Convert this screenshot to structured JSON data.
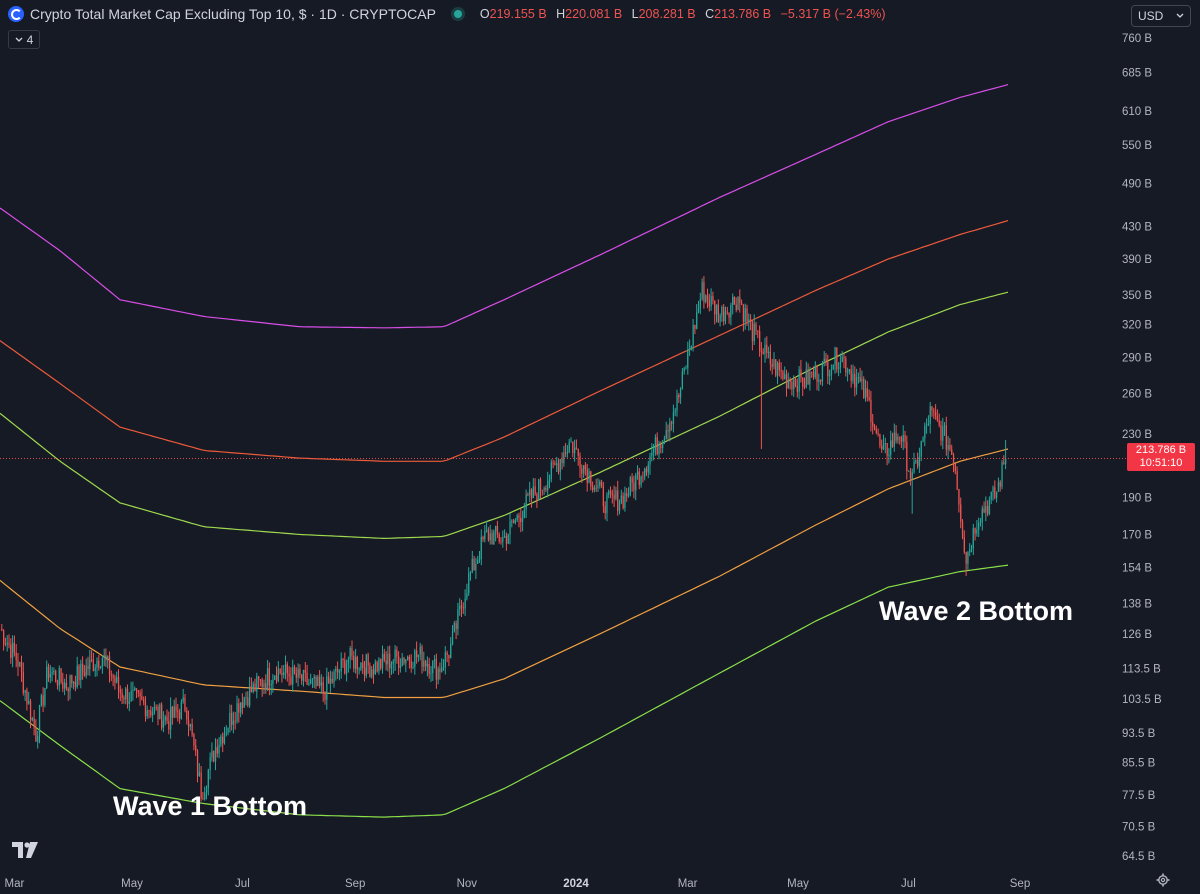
{
  "header": {
    "title": "Crypto Total Market Cap Excluding Top 10, $ · 1D · CRYPTOCAP",
    "open_label": "O",
    "open": "219.155 B",
    "high_label": "H",
    "high": "220.081 B",
    "low_label": "L",
    "low": "208.281 B",
    "close_label": "C",
    "close": "213.786 B",
    "change": "−5.317 B (−2.43%)",
    "indicator_count": "4"
  },
  "currency": "USD",
  "price_tag": {
    "price": "213.786 B",
    "countdown": "10:51:10"
  },
  "annotations": {
    "wave1": "Wave 1 Bottom",
    "wave2": "Wave 2 Bottom"
  },
  "colors": {
    "background": "#161a25",
    "up": "#26a69a",
    "down": "#ef5350",
    "band_top": "#d84ee8",
    "band_red": "#ec5a3a",
    "band_green_upper": "#9fd94e",
    "band_orange": "#f0a040",
    "band_green_lower": "#8be04a"
  },
  "chart_data": {
    "type": "candlestick",
    "title": "Crypto Total Market Cap Excluding Top 10",
    "scale": "log",
    "ylim": [
      62,
      790
    ],
    "y_ticks": [
      "760 B",
      "685 B",
      "610 B",
      "550 B",
      "490 B",
      "430 B",
      "390 B",
      "350 B",
      "320 B",
      "290 B",
      "260 B",
      "230 B",
      "190 B",
      "170 B",
      "154 B",
      "138 B",
      "126 B",
      "113.5 B",
      "103.5 B",
      "93.5 B",
      "85.5 B",
      "77.5 B",
      "70.5 B",
      "64.5 B"
    ],
    "y_tick_values": [
      760,
      685,
      610,
      550,
      490,
      430,
      390,
      350,
      320,
      290,
      260,
      230,
      190,
      170,
      154,
      138,
      126,
      113.5,
      103.5,
      93.5,
      85.5,
      77.5,
      70.5,
      64.5
    ],
    "x_ticks": [
      {
        "label": "Mar",
        "t": 0.012,
        "bold": false
      },
      {
        "label": "May",
        "t": 0.11,
        "bold": false
      },
      {
        "label": "Jul",
        "t": 0.202,
        "bold": false
      },
      {
        "label": "Sep",
        "t": 0.296,
        "bold": false
      },
      {
        "label": "Nov",
        "t": 0.389,
        "bold": false
      },
      {
        "label": "2024",
        "t": 0.48,
        "bold": true
      },
      {
        "label": "Mar",
        "t": 0.573,
        "bold": false
      },
      {
        "label": "May",
        "t": 0.665,
        "bold": false
      },
      {
        "label": "Jul",
        "t": 0.757,
        "bold": false
      },
      {
        "label": "Sep",
        "t": 0.85,
        "bold": false
      }
    ],
    "last_price": 213.786,
    "price_path": [
      [
        0,
        128
      ],
      [
        0.015,
        116
      ],
      [
        0.03,
        93
      ],
      [
        0.04,
        113
      ],
      [
        0.055,
        108
      ],
      [
        0.07,
        113
      ],
      [
        0.085,
        118
      ],
      [
        0.1,
        106
      ],
      [
        0.12,
        102
      ],
      [
        0.14,
        97
      ],
      [
        0.155,
        102
      ],
      [
        0.168,
        78
      ],
      [
        0.18,
        90
      ],
      [
        0.2,
        103
      ],
      [
        0.215,
        108
      ],
      [
        0.23,
        113
      ],
      [
        0.25,
        110
      ],
      [
        0.27,
        106
      ],
      [
        0.29,
        117
      ],
      [
        0.31,
        114
      ],
      [
        0.33,
        117
      ],
      [
        0.35,
        118
      ],
      [
        0.365,
        113
      ],
      [
        0.375,
        120
      ],
      [
        0.39,
        148
      ],
      [
        0.405,
        170
      ],
      [
        0.42,
        168
      ],
      [
        0.44,
        188
      ],
      [
        0.46,
        205
      ],
      [
        0.475,
        225
      ],
      [
        0.49,
        205
      ],
      [
        0.505,
        187
      ],
      [
        0.52,
        190
      ],
      [
        0.535,
        207
      ],
      [
        0.55,
        226
      ],
      [
        0.565,
        255
      ],
      [
        0.575,
        300
      ],
      [
        0.585,
        355
      ],
      [
        0.6,
        330
      ],
      [
        0.615,
        348
      ],
      [
        0.625,
        318
      ],
      [
        0.64,
        288
      ],
      [
        0.655,
        272
      ],
      [
        0.67,
        270
      ],
      [
        0.685,
        280
      ],
      [
        0.7,
        292
      ],
      [
        0.715,
        270
      ],
      [
        0.725,
        250
      ],
      [
        0.735,
        215
      ],
      [
        0.75,
        232
      ],
      [
        0.76,
        200
      ],
      [
        0.775,
        245
      ],
      [
        0.785,
        232
      ],
      [
        0.795,
        215
      ],
      [
        0.805,
        158
      ],
      [
        0.815,
        180
      ],
      [
        0.83,
        192
      ],
      [
        0.838,
        214
      ]
    ],
    "lows": [
      {
        "t": 0.03,
        "v": 91
      },
      {
        "t": 0.168,
        "v": 76
      },
      {
        "t": 0.635,
        "v": 220
      },
      {
        "t": 0.76,
        "v": 181
      },
      {
        "t": 0.805,
        "v": 150
      }
    ],
    "highs": [
      {
        "t": 0.585,
        "v": 368
      },
      {
        "t": 0.838,
        "v": 226
      }
    ],
    "series": [
      {
        "name": "band_top",
        "color": "#d84ee8",
        "points": [
          [
            0,
            455
          ],
          [
            0.05,
            400
          ],
          [
            0.1,
            345
          ],
          [
            0.17,
            328
          ],
          [
            0.25,
            318
          ],
          [
            0.32,
            317
          ],
          [
            0.37,
            318
          ],
          [
            0.42,
            345
          ],
          [
            0.5,
            395
          ],
          [
            0.6,
            470
          ],
          [
            0.68,
            535
          ],
          [
            0.74,
            590
          ],
          [
            0.8,
            635
          ],
          [
            0.84,
            660
          ]
        ]
      },
      {
        "name": "band_red",
        "color": "#ec5a3a",
        "points": [
          [
            0,
            305
          ],
          [
            0.05,
            268
          ],
          [
            0.1,
            235
          ],
          [
            0.17,
            219
          ],
          [
            0.25,
            214
          ],
          [
            0.32,
            212
          ],
          [
            0.37,
            212
          ],
          [
            0.42,
            228
          ],
          [
            0.5,
            262
          ],
          [
            0.6,
            310
          ],
          [
            0.68,
            355
          ],
          [
            0.74,
            390
          ],
          [
            0.8,
            420
          ],
          [
            0.84,
            438
          ]
        ]
      },
      {
        "name": "band_green_upper",
        "color": "#9fd94e",
        "points": [
          [
            0,
            245
          ],
          [
            0.05,
            212
          ],
          [
            0.1,
            187
          ],
          [
            0.17,
            174
          ],
          [
            0.25,
            170
          ],
          [
            0.32,
            168
          ],
          [
            0.37,
            169
          ],
          [
            0.42,
            180
          ],
          [
            0.5,
            205
          ],
          [
            0.6,
            243
          ],
          [
            0.68,
            282
          ],
          [
            0.74,
            313
          ],
          [
            0.8,
            340
          ],
          [
            0.84,
            353
          ]
        ]
      },
      {
        "name": "band_orange",
        "color": "#f0a040",
        "points": [
          [
            0,
            148
          ],
          [
            0.05,
            128
          ],
          [
            0.1,
            114
          ],
          [
            0.17,
            108
          ],
          [
            0.25,
            106
          ],
          [
            0.32,
            104
          ],
          [
            0.37,
            104
          ],
          [
            0.42,
            110
          ],
          [
            0.5,
            126
          ],
          [
            0.6,
            150
          ],
          [
            0.68,
            175
          ],
          [
            0.74,
            195
          ],
          [
            0.8,
            212
          ],
          [
            0.84,
            220
          ]
        ]
      },
      {
        "name": "band_green_lower",
        "color": "#8be04a",
        "points": [
          [
            0,
            103
          ],
          [
            0.05,
            90
          ],
          [
            0.1,
            79
          ],
          [
            0.17,
            75.5
          ],
          [
            0.25,
            73
          ],
          [
            0.32,
            72.5
          ],
          [
            0.37,
            73
          ],
          [
            0.42,
            79
          ],
          [
            0.5,
            92
          ],
          [
            0.6,
            112
          ],
          [
            0.68,
            131
          ],
          [
            0.74,
            145
          ],
          [
            0.8,
            152
          ],
          [
            0.84,
            155
          ]
        ]
      }
    ]
  }
}
